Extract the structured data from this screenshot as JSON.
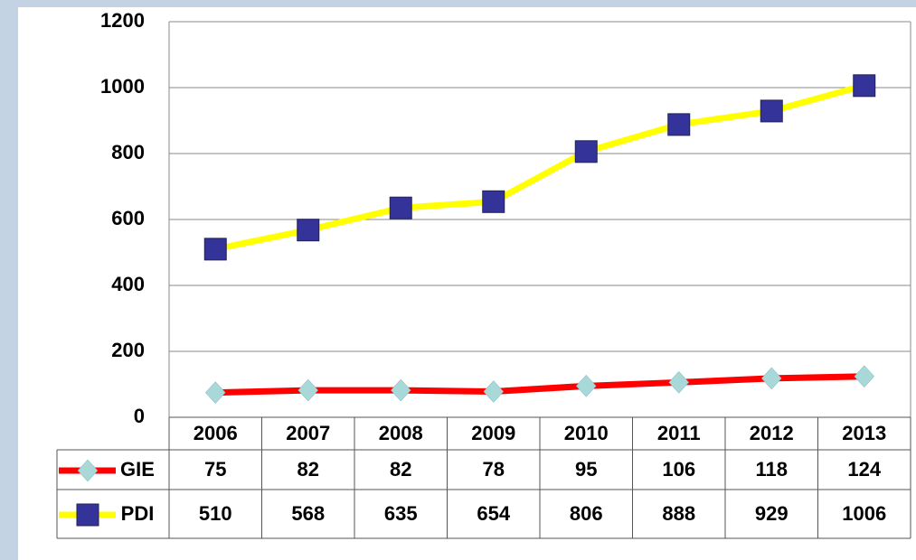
{
  "chart_data": {
    "type": "line",
    "categories": [
      "2006",
      "2007",
      "2008",
      "2009",
      "2010",
      "2011",
      "2012",
      "2013"
    ],
    "series": [
      {
        "name": "GIE",
        "color": "#ff0000",
        "marker_color": "#a8d8d8",
        "marker": "diamond",
        "values": [
          75,
          82,
          82,
          78,
          95,
          106,
          118,
          124
        ]
      },
      {
        "name": "PDI",
        "color": "#ffff00",
        "marker_color": "#333399",
        "marker": "square",
        "values": [
          510,
          568,
          635,
          654,
          806,
          888,
          929,
          1006
        ]
      }
    ],
    "ylim": [
      0,
      1200
    ],
    "yticks": [
      0,
      200,
      400,
      600,
      800,
      1000,
      1200
    ],
    "grid": true
  }
}
